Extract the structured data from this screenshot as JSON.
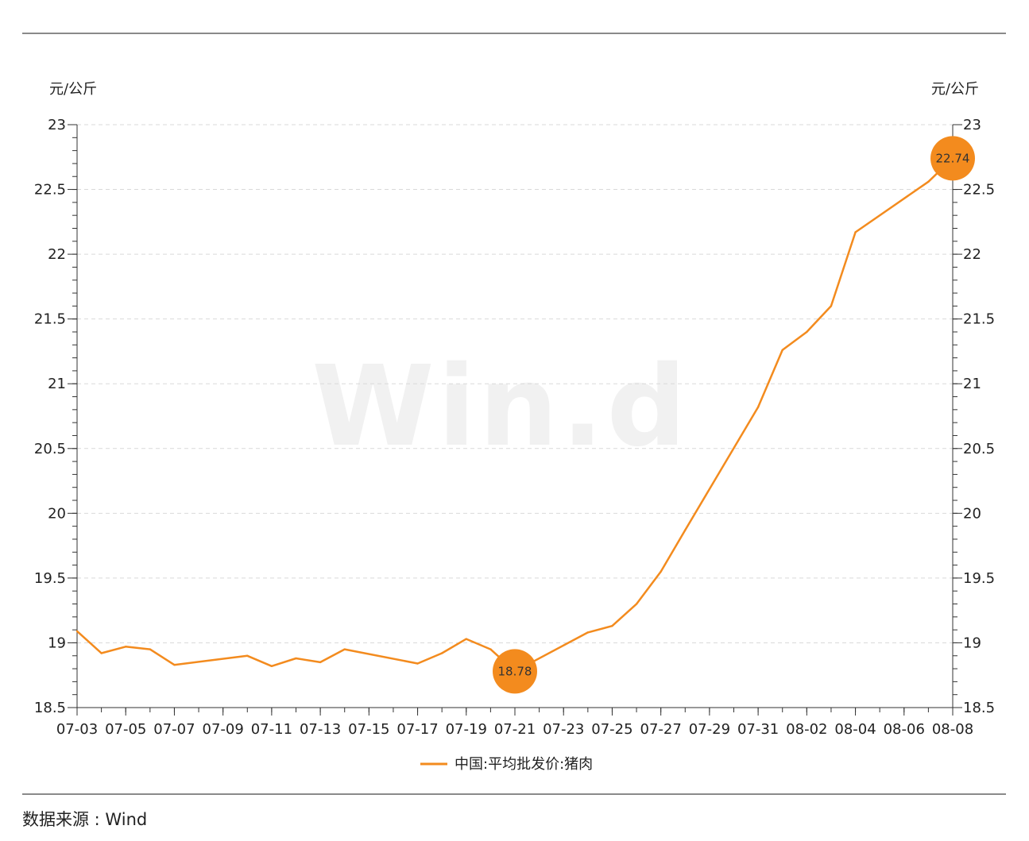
{
  "chart_data": {
    "type": "line",
    "watermark": "Win.d",
    "y_unit_left": "元/公斤",
    "y_unit_right": "元/公斤",
    "ylim": [
      18.5,
      23
    ],
    "yticks": [
      "23",
      "22.5",
      "22",
      "21.5",
      "21",
      "20.5",
      "20",
      "19.5",
      "19",
      "18.5"
    ],
    "ytick_values": [
      23,
      22.5,
      22,
      21.5,
      21,
      20.5,
      20,
      19.5,
      19,
      18.5
    ],
    "xtick_labels": [
      "07-03",
      "07-05",
      "07-07",
      "07-09",
      "07-11",
      "07-13",
      "07-15",
      "07-17",
      "07-19",
      "07-21",
      "07-23",
      "07-25",
      "07-27",
      "07-29",
      "07-31",
      "08-02",
      "08-04",
      "08-06",
      "08-08"
    ],
    "grid": true,
    "legend_position": "bottom",
    "series": [
      {
        "name": "中国:平均批发价:猪肉",
        "color": "#f38b1e",
        "x": [
          "07-03",
          "07-04",
          "07-05",
          "07-06",
          "07-07",
          "07-10",
          "07-11",
          "07-12",
          "07-13",
          "07-14",
          "07-17",
          "07-18",
          "07-19",
          "07-20",
          "07-21",
          "07-24",
          "07-25",
          "07-26",
          "07-27",
          "07-28",
          "07-31",
          "08-01",
          "08-02",
          "08-03",
          "08-04",
          "08-07",
          "08-08"
        ],
        "values": [
          19.09,
          18.92,
          18.97,
          18.95,
          18.83,
          18.9,
          18.82,
          18.88,
          18.85,
          18.95,
          18.84,
          18.92,
          19.03,
          18.95,
          18.78,
          19.08,
          19.13,
          19.3,
          19.55,
          19.87,
          20.82,
          21.26,
          21.4,
          21.6,
          22.17,
          22.56,
          22.74
        ]
      }
    ],
    "annotations": [
      {
        "x": "07-21",
        "label": "18.78"
      },
      {
        "x": "08-08",
        "label": "22.74"
      }
    ]
  },
  "footer": {
    "source": "数据来源 : Wind"
  }
}
